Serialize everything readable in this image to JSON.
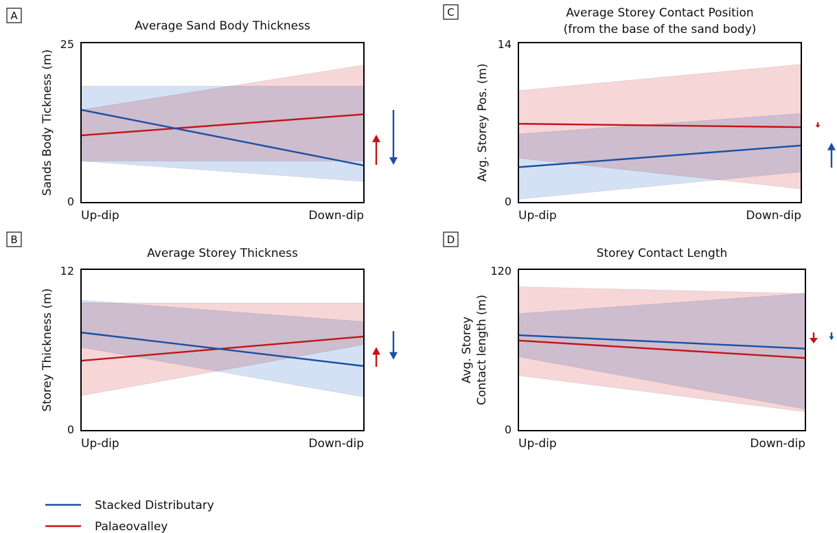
{
  "colors": {
    "stacked": "#1a4fa3",
    "palaeo": "#c21414",
    "stacked_band": "#aac3ea",
    "palaeo_band": "#eea3a8"
  },
  "legend": [
    {
      "key": "stacked",
      "label": "Stacked Distributary"
    },
    {
      "key": "palaeo",
      "label": "Palaeovalley"
    }
  ],
  "chart_data": [
    {
      "type": "line",
      "panel_label": "A",
      "title": [
        "Average Sand Body Thickness"
      ],
      "ylabel": [
        "Sands Body Tickness (m)"
      ],
      "x": [
        "Up-dip",
        "Down-dip"
      ],
      "ylim": [
        0,
        25
      ],
      "yticks": [
        "0",
        "25"
      ],
      "series": [
        {
          "key": "stacked",
          "values": [
            14.5,
            5.8
          ],
          "band_low": [
            6.5,
            3.3
          ],
          "band_high": [
            18.2,
            18.2
          ]
        },
        {
          "key": "palaeo",
          "values": [
            10.5,
            13.8
          ],
          "band_low": [
            6.5,
            6.5
          ],
          "band_high": [
            14.5,
            21.5
          ]
        }
      ],
      "trend_arrows": [
        {
          "key": "palaeo",
          "direction": "up",
          "size": 0.55
        },
        {
          "key": "stacked",
          "direction": "down",
          "size": 1.0
        }
      ]
    },
    {
      "type": "line",
      "panel_label": "B",
      "title": [
        "Average Storey Thickness"
      ],
      "ylabel": [
        "Storey Thickness (m)"
      ],
      "x": [
        "Up-dip",
        "Down-dip"
      ],
      "ylim": [
        0,
        12
      ],
      "yticks": [
        "0",
        "12"
      ],
      "series": [
        {
          "key": "stacked",
          "values": [
            7.3,
            4.8
          ],
          "band_low": [
            6.2,
            2.5
          ],
          "band_high": [
            9.7,
            8.1
          ]
        },
        {
          "key": "palaeo",
          "values": [
            5.2,
            7.0
          ],
          "band_low": [
            2.6,
            6.4
          ],
          "band_high": [
            9.5,
            9.5
          ]
        }
      ],
      "trend_arrows": [
        {
          "key": "palaeo",
          "direction": "up",
          "size": 0.55
        },
        {
          "key": "stacked",
          "direction": "down",
          "size": 0.8
        }
      ]
    },
    {
      "type": "line",
      "panel_label": "C",
      "title": [
        "Average Storey Contact Position",
        "(from the base of the sand body)"
      ],
      "ylabel": [
        "Avg. Storey Pos. (m)"
      ],
      "x": [
        "Up-dip",
        "Down-dip"
      ],
      "ylim": [
        0,
        14
      ],
      "yticks": [
        "0",
        "14"
      ],
      "series": [
        {
          "key": "stacked",
          "values": [
            3.1,
            5.0
          ],
          "band_low": [
            0.3,
            2.7
          ],
          "band_high": [
            6.0,
            7.8
          ]
        },
        {
          "key": "palaeo",
          "values": [
            6.9,
            6.6
          ],
          "band_low": [
            3.9,
            1.2
          ],
          "band_high": [
            9.8,
            12.1
          ]
        }
      ],
      "trend_arrows": [
        {
          "key": "palaeo",
          "direction": "down",
          "size": 0.12
        },
        {
          "key": "stacked",
          "direction": "up",
          "size": 0.55
        }
      ]
    },
    {
      "type": "line",
      "panel_label": "D",
      "title": [
        "Storey Contact Length"
      ],
      "ylabel": [
        "Avg. Storey",
        "Contact length (m)"
      ],
      "x": [
        "Up-dip",
        "Down-dip"
      ],
      "ylim": [
        0,
        120
      ],
      "yticks": [
        "0",
        "120"
      ],
      "series": [
        {
          "key": "stacked",
          "values": [
            71,
            61
          ],
          "band_low": [
            55,
            16
          ],
          "band_high": [
            87,
            102
          ]
        },
        {
          "key": "palaeo",
          "values": [
            67,
            54
          ],
          "band_low": [
            41,
            14
          ],
          "band_high": [
            107,
            102
          ]
        }
      ],
      "trend_arrows": [
        {
          "key": "palaeo",
          "direction": "down",
          "size": 0.4
        },
        {
          "key": "stacked",
          "direction": "down",
          "size": 0.28
        }
      ]
    }
  ]
}
